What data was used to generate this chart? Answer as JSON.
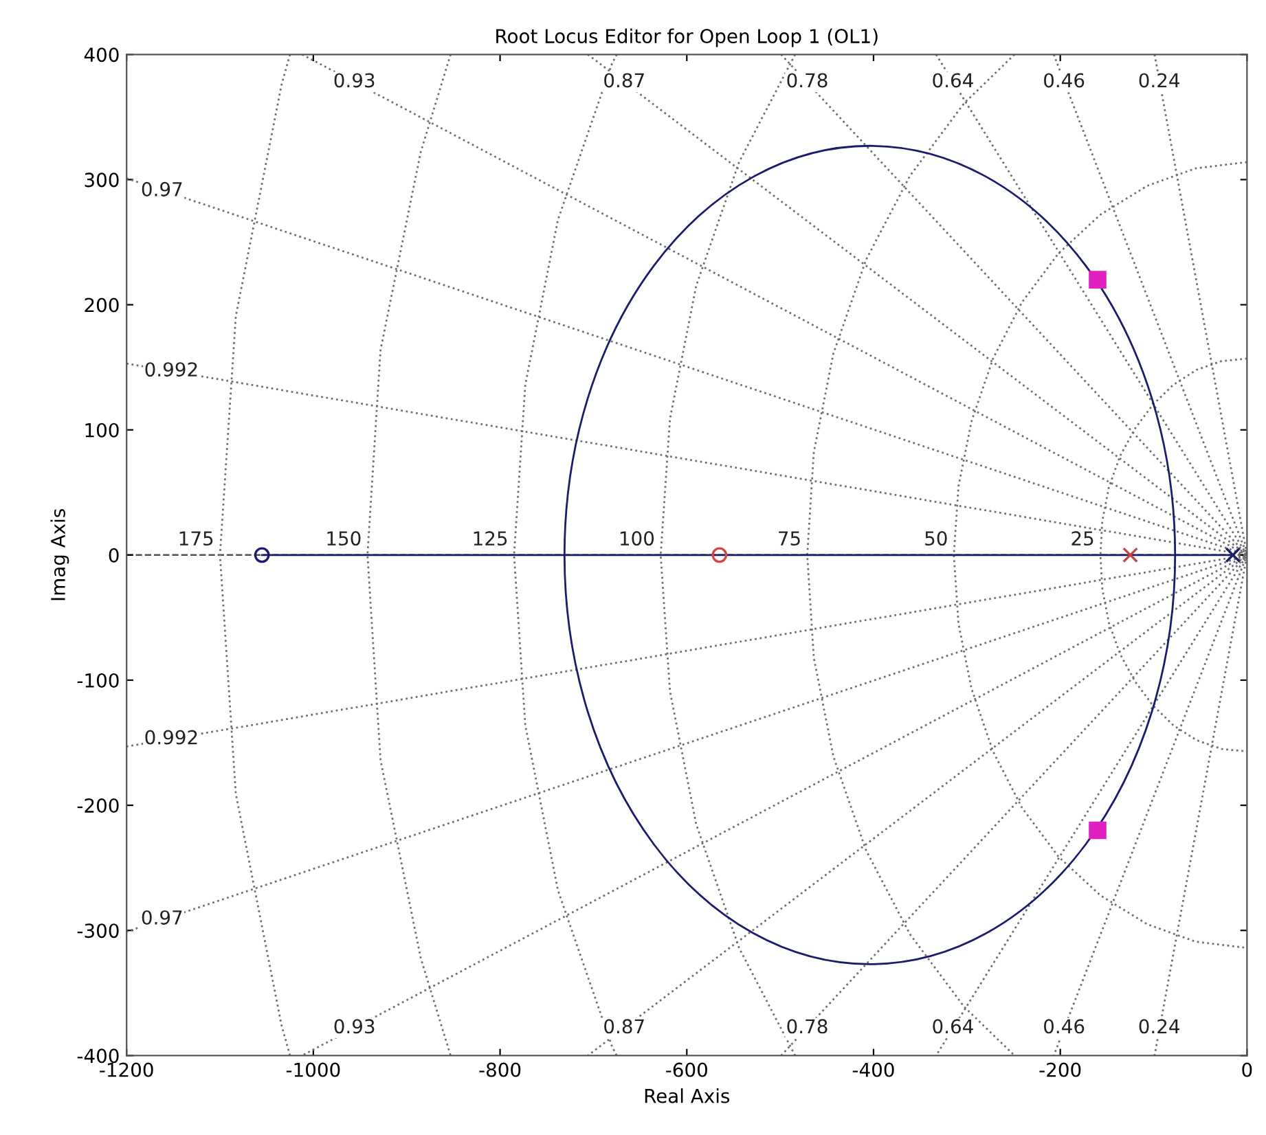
{
  "chart_data": {
    "type": "line",
    "title": "Root Locus Editor for Open Loop 1 (OL1)",
    "xlabel": "Real Axis",
    "ylabel": "Imag Axis",
    "xlim": [
      -1200,
      0
    ],
    "ylim": [
      -400,
      400
    ],
    "xticks": [
      -1200,
      -1000,
      -800,
      -600,
      -400,
      -200,
      0
    ],
    "yticks": [
      -400,
      -300,
      -200,
      -100,
      0,
      100,
      200,
      300,
      400
    ],
    "grid": false,
    "legend": false,
    "ref_lines": [
      {
        "axis": "y",
        "value": 0,
        "color": "#505050",
        "line_style": "dashed"
      }
    ],
    "series": [
      {
        "line_style": "dotted",
        "color": "#707070",
        "x": [
          -99,
          0,
          -99
        ],
        "values": [
          400,
          0,
          -400
        ]
      },
      {
        "line_style": "dotted",
        "color": "#707070",
        "x": [
          -207,
          0,
          -207
        ],
        "values": [
          400,
          0,
          -400
        ]
      },
      {
        "line_style": "dotted",
        "color": "#707070",
        "x": [
          -333,
          0,
          -333
        ],
        "values": [
          400,
          0,
          -400
        ]
      },
      {
        "line_style": "dotted",
        "color": "#707070",
        "x": [
          -499,
          0,
          -499
        ],
        "values": [
          400,
          0,
          -400
        ]
      },
      {
        "line_style": "dotted",
        "color": "#707070",
        "x": [
          -706,
          0,
          -706
        ],
        "values": [
          400,
          0,
          -400
        ]
      },
      {
        "line_style": "dotted",
        "color": "#707070",
        "x": [
          -1012,
          0,
          -1012
        ],
        "values": [
          400,
          0,
          -400
        ]
      },
      {
        "line_style": "dotted",
        "color": "#707070",
        "x": [
          -1200,
          0,
          -1200
        ],
        "values": [
          301,
          0,
          -301
        ]
      },
      {
        "line_style": "dotted",
        "color": "#707070",
        "x": [
          -1200,
          0,
          -1200
        ],
        "values": [
          153,
          0,
          -153
        ]
      },
      {
        "line_style": "dotted",
        "color": "#707070",
        "x": [
          0,
          -27,
          -54,
          -79,
          -101,
          -120,
          -136,
          -148,
          -155,
          -157,
          -155,
          -148,
          -136,
          -120,
          -101,
          -79,
          -54,
          -27,
          0
        ],
        "values": [
          157,
          155,
          148,
          136,
          120,
          101,
          79,
          54,
          27,
          0,
          -27,
          -54,
          -79,
          -101,
          -120,
          -136,
          -148,
          -155,
          -157
        ]
      },
      {
        "line_style": "dotted",
        "color": "#707070",
        "x": [
          0,
          -55,
          -107,
          -157,
          -202,
          -241,
          -272,
          -295,
          -309,
          -314,
          -309,
          -295,
          -272,
          -241,
          -202,
          -157,
          -107,
          -55,
          0
        ],
        "values": [
          314,
          309,
          295,
          272,
          241,
          202,
          157,
          107,
          55,
          0,
          -55,
          -107,
          -157,
          -202,
          -241,
          -272,
          -295,
          -309,
          -314
        ]
      },
      {
        "line_style": "dotted",
        "color": "#707070",
        "x": [
          -249,
          -303,
          -361,
          -408,
          -443,
          -464,
          -471,
          -464,
          -443,
          -408,
          -361,
          -303,
          -249
        ],
        "values": [
          400,
          361,
          303,
          236,
          161,
          82,
          0,
          -82,
          -161,
          -236,
          -303,
          -361,
          -400
        ]
      },
      {
        "line_style": "dotted",
        "color": "#707070",
        "x": [
          -484,
          -544,
          -590,
          -618,
          -628,
          -618,
          -590,
          -544,
          -484
        ],
        "values": [
          400,
          314,
          215,
          109,
          0,
          -109,
          -215,
          -314,
          -400
        ]
      },
      {
        "line_style": "dotted",
        "color": "#707070",
        "x": [
          -675,
          -680,
          -738,
          -773,
          -785,
          -773,
          -738,
          -680,
          -675
        ],
        "values": [
          400,
          393,
          268,
          136,
          0,
          -136,
          -268,
          -393,
          -400
        ]
      },
      {
        "line_style": "dotted",
        "color": "#707070",
        "x": [
          -853,
          -885,
          -928,
          -942,
          -928,
          -885,
          -853
        ],
        "values": [
          400,
          322,
          164,
          0,
          -164,
          -322,
          -400
        ]
      },
      {
        "line_style": "dotted",
        "color": "#707070",
        "x": [
          -1025,
          -1034,
          -1083,
          -1100,
          -1083,
          -1034,
          -1025
        ],
        "values": [
          400,
          376,
          191,
          0,
          -191,
          -376,
          -400
        ]
      },
      {
        "line_style": "solid",
        "color": "#1c1c6e",
        "x": [
          -1055,
          -15
        ],
        "values": [
          0,
          0
        ]
      },
      {
        "type": "scatter",
        "marker": "circle",
        "color": "#1c1c6e",
        "x": [
          -1055
        ],
        "values": [
          0
        ]
      },
      {
        "type": "scatter",
        "marker": "circle",
        "color": "#d04848",
        "x": [
          -565
        ],
        "values": [
          0
        ]
      },
      {
        "type": "scatter",
        "marker": "cross",
        "color": "#c04848",
        "x": [
          -125
        ],
        "values": [
          0
        ]
      },
      {
        "type": "scatter",
        "marker": "cross",
        "color": "#1c1c6e",
        "x": [
          -15
        ],
        "values": [
          0
        ]
      },
      {
        "type": "scatter",
        "marker": "square",
        "color": "#e020c0",
        "x": [
          -160,
          -160
        ],
        "values": [
          220,
          -220
        ]
      }
    ],
    "annotations": [
      {
        "text": "0.93",
        "x": -956,
        "y": 378
      },
      {
        "text": "0.87",
        "x": -667,
        "y": 378
      },
      {
        "text": "0.78",
        "x": -471,
        "y": 378
      },
      {
        "text": "0.64",
        "x": -315,
        "y": 378
      },
      {
        "text": "0.46",
        "x": -196,
        "y": 378
      },
      {
        "text": "0.24",
        "x": -94,
        "y": 378
      },
      {
        "text": "0.97",
        "x": -1162,
        "y": 291
      },
      {
        "text": "0.992",
        "x": -1152,
        "y": 147
      },
      {
        "text": "0.992",
        "x": -1152,
        "y": -147
      },
      {
        "text": "0.97",
        "x": -1162,
        "y": -291
      },
      {
        "text": "0.93",
        "x": -956,
        "y": -378
      },
      {
        "text": "0.87",
        "x": -667,
        "y": -378
      },
      {
        "text": "0.78",
        "x": -471,
        "y": -378
      },
      {
        "text": "0.64",
        "x": -315,
        "y": -378
      },
      {
        "text": "0.46",
        "x": -196,
        "y": -378
      },
      {
        "text": "0.24",
        "x": -94,
        "y": -378
      },
      {
        "text": "175",
        "x": -1100,
        "y": 0
      },
      {
        "text": "150",
        "x": -942,
        "y": 0
      },
      {
        "text": "125",
        "x": -785,
        "y": 0
      },
      {
        "text": "100",
        "x": -628,
        "y": 0
      },
      {
        "text": "75",
        "x": -471,
        "y": 0
      },
      {
        "text": "50",
        "x": -314,
        "y": 0
      },
      {
        "text": "25",
        "x": -157,
        "y": 0
      }
    ]
  }
}
